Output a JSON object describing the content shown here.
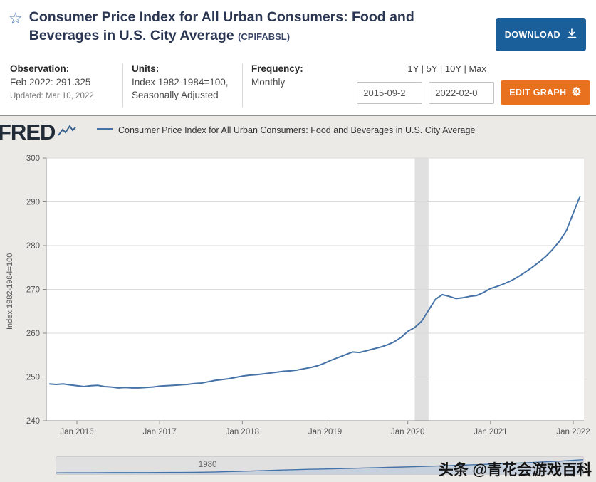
{
  "header": {
    "title": "Consumer Price Index for All Urban Consumers: Food and Beverages in U.S. City Average",
    "series_id": "(CPIFABSL)",
    "download_label": "DOWNLOAD"
  },
  "info_bar": {
    "observation": {
      "label": "Observation:",
      "value": "Feb 2022: 291.325",
      "updated": "Updated: Mar 10, 2022"
    },
    "units": {
      "label": "Units:",
      "line1": "Index 1982-1984=100,",
      "line2": "Seasonally Adjusted"
    },
    "frequency": {
      "label": "Frequency:",
      "value": "Monthly"
    },
    "ranges": [
      "1Y",
      "5Y",
      "10Y",
      "Max"
    ],
    "date_start": "2015-09-2",
    "date_end": "2022-02-0",
    "edit_graph_label": "EDIT GRAPH"
  },
  "graph": {
    "brand": "FRED",
    "legend": "Consumer Price Index for All Urban Consumers: Food and Beverages in U.S. City Average"
  },
  "chart_data": {
    "type": "line",
    "title": "Consumer Price Index for All Urban Consumers: Food and Beverages in U.S. City Average",
    "ylabel": "Index 1982-1984=100",
    "ylim": [
      240,
      300
    ],
    "yticks": [
      240,
      250,
      260,
      270,
      280,
      290,
      300
    ],
    "xticks": [
      "Jan 2016",
      "Jan 2017",
      "Jan 2018",
      "Jan 2019",
      "Jan 2020",
      "Jan 2021",
      "Jan 2022"
    ],
    "xticks_iso": [
      "2016-01",
      "2017-01",
      "2018-01",
      "2019-01",
      "2020-01",
      "2021-01",
      "2022-01"
    ],
    "line_color": "#4572a7",
    "recession_color": "#e0e0e0",
    "recession_band": {
      "start": "2020-02",
      "end": "2020-04"
    },
    "grid": "horizontal",
    "legend_position": "top",
    "months": [
      "2015-09",
      "2015-10",
      "2015-11",
      "2015-12",
      "2016-01",
      "2016-02",
      "2016-03",
      "2016-04",
      "2016-05",
      "2016-06",
      "2016-07",
      "2016-08",
      "2016-09",
      "2016-10",
      "2016-11",
      "2016-12",
      "2017-01",
      "2017-02",
      "2017-03",
      "2017-04",
      "2017-05",
      "2017-06",
      "2017-07",
      "2017-08",
      "2017-09",
      "2017-10",
      "2017-11",
      "2017-12",
      "2018-01",
      "2018-02",
      "2018-03",
      "2018-04",
      "2018-05",
      "2018-06",
      "2018-07",
      "2018-08",
      "2018-09",
      "2018-10",
      "2018-11",
      "2018-12",
      "2019-01",
      "2019-02",
      "2019-03",
      "2019-04",
      "2019-05",
      "2019-06",
      "2019-07",
      "2019-08",
      "2019-09",
      "2019-10",
      "2019-11",
      "2019-12",
      "2020-01",
      "2020-02",
      "2020-03",
      "2020-04",
      "2020-05",
      "2020-06",
      "2020-07",
      "2020-08",
      "2020-09",
      "2020-10",
      "2020-11",
      "2020-12",
      "2021-01",
      "2021-02",
      "2021-03",
      "2021-04",
      "2021-05",
      "2021-06",
      "2021-07",
      "2021-08",
      "2021-09",
      "2021-10",
      "2021-11",
      "2021-12",
      "2022-01",
      "2022-02"
    ],
    "values": [
      248.4,
      248.3,
      248.4,
      248.2,
      248.0,
      247.8,
      248.0,
      248.1,
      247.8,
      247.7,
      247.5,
      247.6,
      247.5,
      247.5,
      247.6,
      247.7,
      247.9,
      248.0,
      248.1,
      248.2,
      248.3,
      248.5,
      248.6,
      248.9,
      249.2,
      249.4,
      249.6,
      249.9,
      250.2,
      250.4,
      250.5,
      250.7,
      250.9,
      251.1,
      251.3,
      251.4,
      251.6,
      251.9,
      252.2,
      252.6,
      253.2,
      253.9,
      254.5,
      255.1,
      255.7,
      255.6,
      256.0,
      256.4,
      256.8,
      257.3,
      258.0,
      259.0,
      260.4,
      261.3,
      262.7,
      265.2,
      267.7,
      268.8,
      268.4,
      267.9,
      268.1,
      268.4,
      268.6,
      269.3,
      270.2,
      270.7,
      271.3,
      272.0,
      272.9,
      273.9,
      275.0,
      276.2,
      277.5,
      279.1,
      281.0,
      283.4,
      287.4,
      291.325
    ],
    "minimap": {
      "label": "1980",
      "values": [
        22,
        23,
        23,
        24,
        25,
        26,
        26,
        27,
        28,
        29,
        30,
        31,
        33,
        36,
        40,
        46,
        53,
        60,
        67,
        74,
        81,
        88,
        94,
        99,
        104,
        109,
        115,
        121,
        127,
        133,
        139,
        146,
        153,
        160,
        167,
        175,
        183,
        192,
        201,
        210,
        219,
        228,
        238,
        250,
        262,
        276,
        291
      ]
    }
  },
  "watermark": "头条 @青花会游戏百科"
}
